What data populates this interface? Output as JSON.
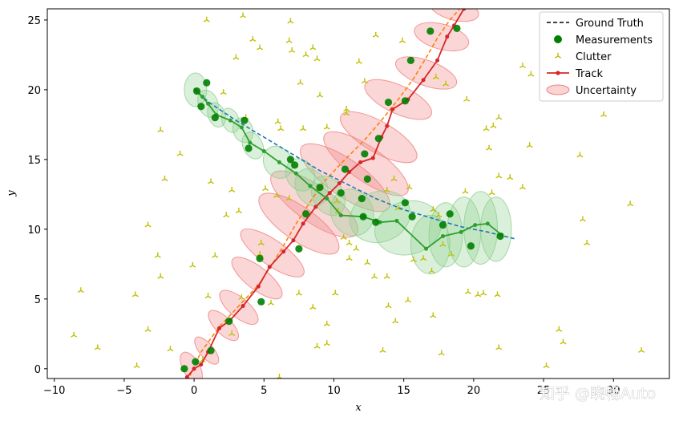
{
  "chart_data": {
    "type": "scatter",
    "title": "",
    "xlabel": "x",
    "ylabel": "y",
    "xlim": [
      -10.5,
      34
    ],
    "ylim": [
      -0.7,
      25.8
    ],
    "xticks": [
      -10,
      -5,
      0,
      5,
      10,
      15,
      20,
      25,
      30
    ],
    "yticks": [
      0,
      5,
      10,
      15,
      20,
      25
    ],
    "grid": false,
    "legend_position": "top-right",
    "legend": [
      {
        "label": "Ground Truth",
        "style": "dashed-line",
        "color": "#000000"
      },
      {
        "label": "Measurements",
        "style": "dot",
        "color": "#008000"
      },
      {
        "label": "Clutter",
        "style": "tri-marker",
        "color": "#bfbf00"
      },
      {
        "label": "Track",
        "style": "line-dot",
        "color": "#d62728"
      },
      {
        "label": "Uncertainty",
        "style": "ellipse",
        "color": "#f08080"
      }
    ],
    "ground_truth": [
      {
        "color": "#ff7f0e",
        "points": [
          [
            -0.3,
            -0.5
          ],
          [
            0.5,
            1.2
          ],
          [
            1.8,
            3.0
          ],
          [
            3.2,
            4.5
          ],
          [
            4.6,
            6.0
          ],
          [
            5.6,
            7.5
          ],
          [
            6.5,
            9.0
          ],
          [
            7.3,
            10.4
          ],
          [
            8.2,
            11.8
          ],
          [
            9.2,
            13.3
          ],
          [
            10.6,
            14.8
          ],
          [
            12.2,
            16.4
          ],
          [
            13.4,
            17.8
          ],
          [
            14.6,
            19.3
          ],
          [
            15.7,
            20.8
          ],
          [
            16.6,
            22.3
          ],
          [
            17.4,
            23.7
          ],
          [
            18.3,
            25.0
          ],
          [
            19.0,
            25.8
          ]
        ]
      },
      {
        "color": "#1f77b4",
        "points": [
          [
            0.0,
            20.0
          ],
          [
            1.2,
            19.0
          ],
          [
            3.0,
            17.8
          ],
          [
            5.0,
            16.6
          ],
          [
            7.0,
            15.4
          ],
          [
            9.0,
            14.2
          ],
          [
            11.0,
            13.2
          ],
          [
            13.0,
            12.2
          ],
          [
            15.0,
            11.4
          ],
          [
            17.0,
            10.8
          ],
          [
            19.0,
            10.2
          ],
          [
            21.0,
            9.8
          ],
          [
            23.0,
            9.3
          ]
        ]
      }
    ],
    "measurements": [
      [
        -0.7,
        0.0
      ],
      [
        0.1,
        0.5
      ],
      [
        1.2,
        1.3
      ],
      [
        2.5,
        3.4
      ],
      [
        4.8,
        4.8
      ],
      [
        4.7,
        7.9
      ],
      [
        7.5,
        8.6
      ],
      [
        8.0,
        11.1
      ],
      [
        9.0,
        13.0
      ],
      [
        10.5,
        12.6
      ],
      [
        10.8,
        14.3
      ],
      [
        12.2,
        15.4
      ],
      [
        12.0,
        12.2
      ],
      [
        12.4,
        13.6
      ],
      [
        13.2,
        16.5
      ],
      [
        13.9,
        19.1
      ],
      [
        15.1,
        19.2
      ],
      [
        15.5,
        22.1
      ],
      [
        16.9,
        24.2
      ],
      [
        18.5,
        27.0
      ],
      [
        18.8,
        24.4
      ],
      [
        0.2,
        19.9
      ],
      [
        0.5,
        18.8
      ],
      [
        0.9,
        20.5
      ],
      [
        1.5,
        18.0
      ],
      [
        3.6,
        17.8
      ],
      [
        3.9,
        15.8
      ],
      [
        6.9,
        15.0
      ],
      [
        7.2,
        14.6
      ],
      [
        12.1,
        10.9
      ],
      [
        13.0,
        10.5
      ],
      [
        15.1,
        11.9
      ],
      [
        15.6,
        10.9
      ],
      [
        17.8,
        10.3
      ],
      [
        18.3,
        11.1
      ],
      [
        19.8,
        8.8
      ],
      [
        21.9,
        9.5
      ]
    ],
    "clutter": [
      [
        0.9,
        25.0
      ],
      [
        3.5,
        25.3
      ],
      [
        6.9,
        24.9
      ],
      [
        4.2,
        23.6
      ],
      [
        4.7,
        23.0
      ],
      [
        6.8,
        23.5
      ],
      [
        7.0,
        22.8
      ],
      [
        8.0,
        22.5
      ],
      [
        8.5,
        23.0
      ],
      [
        8.8,
        22.2
      ],
      [
        3.0,
        22.3
      ],
      [
        7.6,
        20.5
      ],
      [
        2.1,
        19.8
      ],
      [
        9.0,
        19.6
      ],
      [
        11.8,
        22.0
      ],
      [
        12.2,
        20.6
      ],
      [
        14.9,
        23.5
      ],
      [
        13.0,
        23.9
      ],
      [
        17.3,
        20.9
      ],
      [
        18.0,
        20.4
      ],
      [
        19.5,
        19.3
      ],
      [
        20.9,
        17.2
      ],
      [
        21.4,
        17.4
      ],
      [
        21.8,
        18.0
      ],
      [
        23.5,
        21.7
      ],
      [
        24.1,
        21.1
      ],
      [
        10.9,
        18.3
      ],
      [
        10.9,
        18.6
      ],
      [
        3.7,
        18.0
      ],
      [
        6.0,
        17.7
      ],
      [
        6.2,
        17.2
      ],
      [
        7.8,
        17.2
      ],
      [
        9.5,
        17.3
      ],
      [
        -2.4,
        17.1
      ],
      [
        -1.0,
        15.4
      ],
      [
        -2.1,
        13.6
      ],
      [
        1.2,
        13.4
      ],
      [
        2.7,
        12.8
      ],
      [
        5.1,
        12.9
      ],
      [
        5.9,
        12.4
      ],
      [
        6.8,
        12.2
      ],
      [
        8.9,
        12.9
      ],
      [
        10.2,
        12.0
      ],
      [
        -3.3,
        10.3
      ],
      [
        2.3,
        11.0
      ],
      [
        3.2,
        11.3
      ],
      [
        10.3,
        11.3
      ],
      [
        13.8,
        12.8
      ],
      [
        14.3,
        13.6
      ],
      [
        14.6,
        11.5
      ],
      [
        15.4,
        13.0
      ],
      [
        17.1,
        11.4
      ],
      [
        17.5,
        11.0
      ],
      [
        19.4,
        12.7
      ],
      [
        21.3,
        12.6
      ],
      [
        21.8,
        13.8
      ],
      [
        22.6,
        13.7
      ],
      [
        23.5,
        13.0
      ],
      [
        24.0,
        16.0
      ],
      [
        21.1,
        15.8
      ],
      [
        27.6,
        15.3
      ],
      [
        29.3,
        18.2
      ],
      [
        31.2,
        11.8
      ],
      [
        27.8,
        10.7
      ],
      [
        28.1,
        9.0
      ],
      [
        -2.6,
        8.1
      ],
      [
        -2.4,
        6.6
      ],
      [
        -0.1,
        7.4
      ],
      [
        1.5,
        8.1
      ],
      [
        4.8,
        9.0
      ],
      [
        4.7,
        8.2
      ],
      [
        10.7,
        9.4
      ],
      [
        11.1,
        9.0
      ],
      [
        11.6,
        8.6
      ],
      [
        11.1,
        7.9
      ],
      [
        12.4,
        7.6
      ],
      [
        12.9,
        6.6
      ],
      [
        13.8,
        6.6
      ],
      [
        15.7,
        7.8
      ],
      [
        16.4,
        7.9
      ],
      [
        17.0,
        7.0
      ],
      [
        17.8,
        8.9
      ],
      [
        18.4,
        8.2
      ],
      [
        19.6,
        5.5
      ],
      [
        20.3,
        5.3
      ],
      [
        20.7,
        5.4
      ],
      [
        21.7,
        5.3
      ],
      [
        -8.1,
        5.6
      ],
      [
        -4.2,
        5.3
      ],
      [
        1.0,
        5.2
      ],
      [
        3.4,
        5.1
      ],
      [
        5.5,
        4.7
      ],
      [
        7.5,
        5.4
      ],
      [
        8.5,
        4.4
      ],
      [
        10.1,
        5.4
      ],
      [
        13.9,
        4.5
      ],
      [
        14.4,
        3.4
      ],
      [
        15.3,
        4.9
      ],
      [
        17.1,
        3.8
      ],
      [
        9.5,
        3.2
      ],
      [
        -8.6,
        2.4
      ],
      [
        -3.3,
        2.8
      ],
      [
        -1.7,
        1.4
      ],
      [
        -6.9,
        1.5
      ],
      [
        0.6,
        0.6
      ],
      [
        2.7,
        2.5
      ],
      [
        8.8,
        1.6
      ],
      [
        9.5,
        1.8
      ],
      [
        13.5,
        1.3
      ],
      [
        17.7,
        1.1
      ],
      [
        21.8,
        1.5
      ],
      [
        26.1,
        2.8
      ],
      [
        26.4,
        1.9
      ],
      [
        25.2,
        0.2
      ],
      [
        32.0,
        1.3
      ],
      [
        -4.1,
        0.2
      ],
      [
        6.1,
        -0.6
      ]
    ],
    "tracks": [
      {
        "color": "#d62728",
        "points": [
          [
            -0.5,
            -0.6
          ],
          [
            0.0,
            0.0
          ],
          [
            0.5,
            0.3
          ],
          [
            1.0,
            1.2
          ],
          [
            1.8,
            2.9
          ],
          [
            2.6,
            3.5
          ],
          [
            3.5,
            4.5
          ],
          [
            4.6,
            5.9
          ],
          [
            5.4,
            7.3
          ],
          [
            6.4,
            8.4
          ],
          [
            7.1,
            9.2
          ],
          [
            7.8,
            10.4
          ],
          [
            8.7,
            11.6
          ],
          [
            9.7,
            12.6
          ],
          [
            10.4,
            13.3
          ],
          [
            11.1,
            14.1
          ],
          [
            11.9,
            14.8
          ],
          [
            12.8,
            15.1
          ],
          [
            13.4,
            16.6
          ],
          [
            13.8,
            17.4
          ],
          [
            14.2,
            18.6
          ],
          [
            15.3,
            19.3
          ],
          [
            16.4,
            20.7
          ],
          [
            17.4,
            22.1
          ],
          [
            18.1,
            23.8
          ],
          [
            18.6,
            24.6
          ],
          [
            19.3,
            25.8
          ]
        ]
      },
      {
        "color": "#2ca02c",
        "points": [
          [
            0.1,
            20.0
          ],
          [
            0.6,
            19.5
          ],
          [
            1.0,
            19.0
          ],
          [
            1.6,
            18.2
          ],
          [
            2.6,
            17.8
          ],
          [
            3.4,
            17.3
          ],
          [
            4.0,
            16.2
          ],
          [
            5.0,
            15.6
          ],
          [
            6.1,
            14.8
          ],
          [
            7.3,
            14.0
          ],
          [
            8.3,
            13.1
          ],
          [
            9.5,
            12.2
          ],
          [
            10.5,
            11.0
          ],
          [
            12.1,
            10.9
          ],
          [
            13.3,
            10.5
          ],
          [
            14.5,
            10.6
          ],
          [
            16.6,
            8.6
          ],
          [
            17.8,
            9.5
          ],
          [
            19.1,
            9.8
          ],
          [
            20.1,
            10.3
          ],
          [
            21.0,
            10.4
          ],
          [
            22.0,
            9.6
          ]
        ]
      }
    ],
    "uncertainty": [
      {
        "color": "#f08080",
        "ellipses": [
          [
            -0.2,
            0.1,
            0.6,
            1.2,
            -30
          ],
          [
            0.9,
            1.3,
            0.5,
            1.2,
            -40
          ],
          [
            2.1,
            3.1,
            0.6,
            1.4,
            -45
          ],
          [
            3.2,
            4.4,
            0.7,
            1.7,
            -50
          ],
          [
            4.5,
            6.5,
            0.8,
            2.2,
            -52
          ],
          [
            5.6,
            8.3,
            0.9,
            2.7,
            -55
          ],
          [
            7.5,
            10.4,
            1.2,
            3.4,
            -55
          ],
          [
            8.6,
            11.8,
            1.3,
            3.7,
            -55
          ],
          [
            10.8,
            13.7,
            1.3,
            3.8,
            -55
          ],
          [
            12.3,
            14.7,
            1.2,
            3.6,
            -55
          ],
          [
            13.2,
            16.6,
            1.1,
            3.1,
            -60
          ],
          [
            14.6,
            19.3,
            1.0,
            2.6,
            -65
          ],
          [
            16.6,
            21.2,
            0.9,
            2.3,
            -70
          ],
          [
            17.7,
            23.8,
            0.9,
            2.0,
            -75
          ],
          [
            18.6,
            25.8,
            0.8,
            1.8,
            -75
          ]
        ]
      },
      {
        "color": "#90d090",
        "ellipses": [
          [
            0.1,
            20.0,
            0.8,
            1.2,
            0
          ],
          [
            1.0,
            19.0,
            0.7,
            1.0,
            -20
          ],
          [
            1.6,
            18.2,
            0.6,
            0.9,
            -20
          ],
          [
            2.6,
            17.8,
            0.6,
            0.9,
            -20
          ],
          [
            3.5,
            17.1,
            0.7,
            0.9,
            -20
          ],
          [
            4.2,
            16.0,
            0.7,
            1.0,
            -25
          ],
          [
            6.0,
            14.8,
            1.0,
            1.2,
            -30
          ],
          [
            7.6,
            13.9,
            1.0,
            1.2,
            -30
          ],
          [
            8.4,
            13.0,
            1.1,
            1.4,
            -30
          ],
          [
            9.6,
            12.4,
            1.1,
            1.5,
            -30
          ],
          [
            11.3,
            11.2,
            1.5,
            1.7,
            -25
          ],
          [
            13.3,
            10.9,
            2.2,
            1.8,
            -20
          ],
          [
            15.3,
            10.1,
            2.4,
            1.9,
            -15
          ],
          [
            16.9,
            8.9,
            1.4,
            2.1,
            0
          ],
          [
            18.0,
            9.6,
            1.2,
            2.3,
            0
          ],
          [
            19.3,
            9.8,
            1.2,
            2.5,
            0
          ],
          [
            20.5,
            10.1,
            1.2,
            2.6,
            0
          ],
          [
            21.6,
            10.0,
            1.1,
            2.3,
            0
          ]
        ]
      }
    ],
    "watermark": "知乎 @晓畅Auto"
  }
}
